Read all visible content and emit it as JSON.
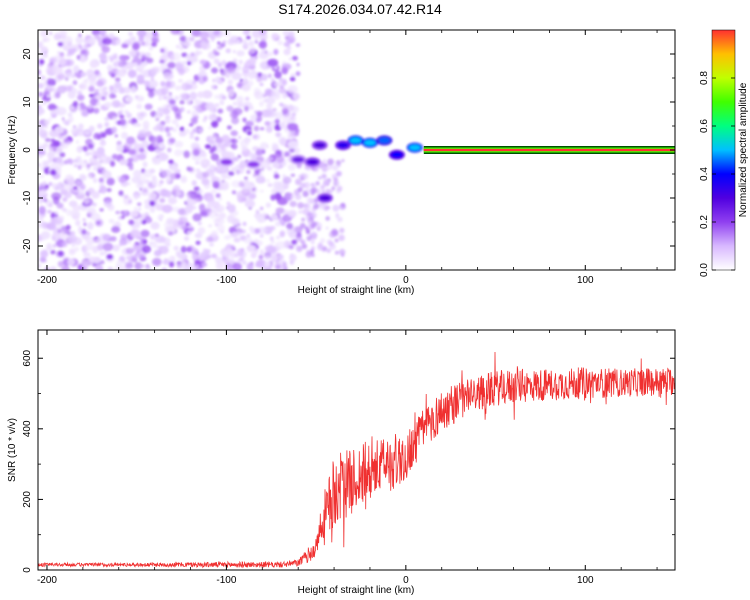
{
  "figure": {
    "title": "S174.2026.034.07.42.R14"
  },
  "chart_data": [
    {
      "type": "heatmap",
      "title": "S174.2026.034.07.42.R14",
      "xlabel": "Height of straight line (km)",
      "ylabel": "Frequency (Hz)",
      "xlim": [
        -205,
        150
      ],
      "ylim": [
        -25,
        25
      ],
      "x_ticks": [
        -200,
        -100,
        0,
        100
      ],
      "y_ticks": [
        -20,
        -10,
        0,
        10,
        20
      ],
      "colorbar": {
        "label": "Normalized spectral amplitude",
        "range": [
          0.0,
          1.0
        ],
        "ticks": [
          "0.0",
          "0.2",
          "0.4",
          "0.6",
          "0.8"
        ],
        "colors": [
          "#ffffff",
          "#d8b8ff",
          "#9040f0",
          "#5000e0",
          "#0000ff",
          "#00c0ff",
          "#00ff80",
          "#40ff00",
          "#c0ff00",
          "#ffc000",
          "#ff3030"
        ]
      },
      "features": [
        {
          "x": -100,
          "y": -2.5,
          "amp": 0.2
        },
        {
          "x": -85,
          "y": -3,
          "amp": 0.2
        },
        {
          "x": -60,
          "y": -2,
          "amp": 0.25
        },
        {
          "x": -52,
          "y": -2.5,
          "amp": 0.3
        },
        {
          "x": -48,
          "y": 1,
          "amp": 0.3
        },
        {
          "x": -45,
          "y": -10,
          "amp": 0.3
        },
        {
          "x": -35,
          "y": 1,
          "amp": 0.35
        },
        {
          "x": -28,
          "y": 2,
          "amp": 0.5
        },
        {
          "x": -20,
          "y": 1.5,
          "amp": 0.5
        },
        {
          "x": -12,
          "y": 2,
          "amp": 0.45
        },
        {
          "x": -5,
          "y": -1,
          "amp": 0.4
        },
        {
          "x": 5,
          "y": 0.5,
          "amp": 0.5
        }
      ],
      "ridge": {
        "y": 0,
        "x_start": 10,
        "x_end": 150,
        "amp": 1.0
      }
    },
    {
      "type": "line",
      "xlabel": "Height of straight line (km)",
      "ylabel": "SNR (10 * v/v)",
      "xlim": [
        -205,
        150
      ],
      "ylim": [
        0,
        680
      ],
      "x_ticks": [
        -200,
        -100,
        0,
        100
      ],
      "y_ticks": [
        0,
        200,
        400,
        600
      ],
      "series": [
        {
          "name": "SNR",
          "color": "#f03030",
          "x": [
            -205,
            -150,
            -100,
            -70,
            -60,
            -50,
            -45,
            -40,
            -35,
            -30,
            -25,
            -20,
            -15,
            -10,
            -5,
            0,
            10,
            20,
            30,
            40,
            50,
            60,
            80,
            100,
            120,
            150
          ],
          "y": [
            15,
            15,
            15,
            15,
            20,
            60,
            150,
            220,
            240,
            250,
            270,
            280,
            290,
            300,
            310,
            320,
            400,
            450,
            480,
            500,
            515,
            520,
            525,
            530,
            530,
            535
          ],
          "noise": [
            5,
            5,
            8,
            8,
            10,
            30,
            80,
            100,
            100,
            90,
            90,
            90,
            80,
            80,
            80,
            70,
            60,
            60,
            55,
            50,
            50,
            50,
            45,
            45,
            40,
            40
          ]
        }
      ]
    }
  ]
}
